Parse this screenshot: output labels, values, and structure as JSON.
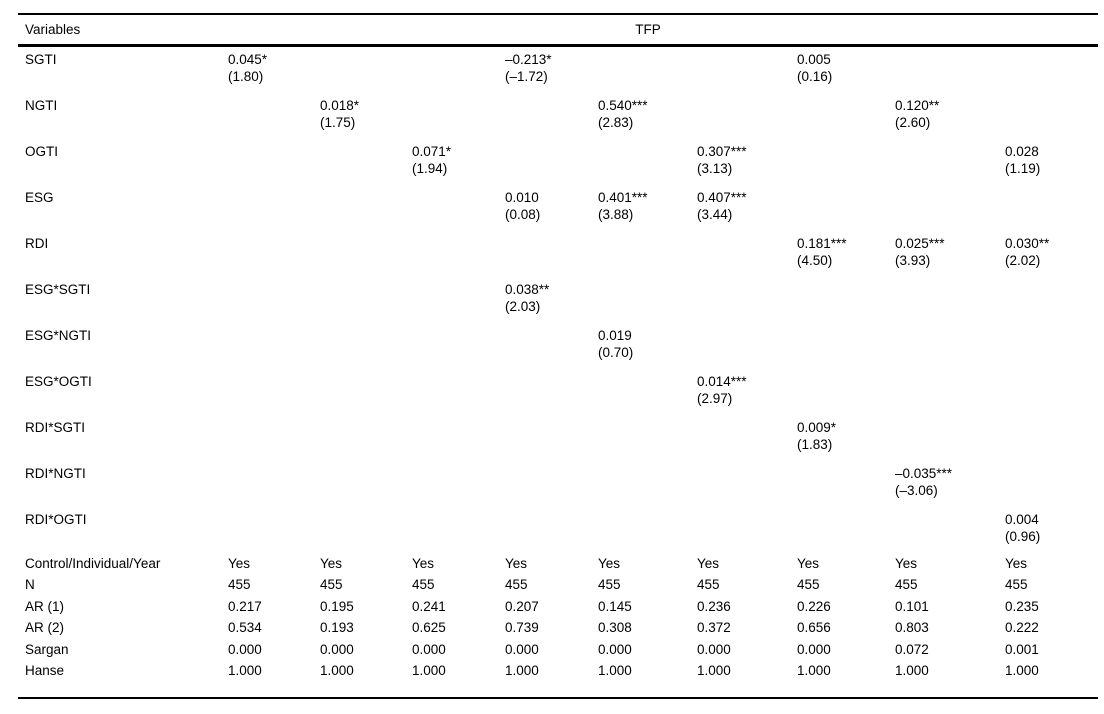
{
  "table": {
    "header": {
      "variables_label": "Variables",
      "dependent_variable_label": "TFP"
    },
    "variable_rows": [
      {
        "label": "SGTI",
        "coefs": [
          "0.045*",
          "",
          "",
          "–0.213*",
          "",
          "",
          "0.005",
          "",
          ""
        ],
        "tstats": [
          "(1.80)",
          "",
          "",
          "(–1.72)",
          "",
          "",
          "(0.16)",
          "",
          ""
        ]
      },
      {
        "label": "NGTI",
        "coefs": [
          "",
          "0.018*",
          "",
          "",
          "0.540***",
          "",
          "",
          "0.120**",
          ""
        ],
        "tstats": [
          "",
          "(1.75)",
          "",
          "",
          "(2.83)",
          "",
          "",
          "(2.60)",
          ""
        ]
      },
      {
        "label": "OGTI",
        "coefs": [
          "",
          "",
          "0.071*",
          "",
          "",
          "0.307***",
          "",
          "",
          "0.028"
        ],
        "tstats": [
          "",
          "",
          "(1.94)",
          "",
          "",
          "(3.13)",
          "",
          "",
          "(1.19)"
        ]
      },
      {
        "label": "ESG",
        "coefs": [
          "",
          "",
          "",
          "0.010",
          "0.401***",
          "0.407***",
          "",
          "",
          ""
        ],
        "tstats": [
          "",
          "",
          "",
          "(0.08)",
          "(3.88)",
          "(3.44)",
          "",
          "",
          ""
        ]
      },
      {
        "label": "RDI",
        "coefs": [
          "",
          "",
          "",
          "",
          "",
          "",
          "0.181***",
          "0.025***",
          "0.030**"
        ],
        "tstats": [
          "",
          "",
          "",
          "",
          "",
          "",
          "(4.50)",
          "(3.93)",
          "(2.02)"
        ]
      },
      {
        "label": "ESG*SGTI",
        "coefs": [
          "",
          "",
          "",
          "0.038**",
          "",
          "",
          "",
          "",
          ""
        ],
        "tstats": [
          "",
          "",
          "",
          "(2.03)",
          "",
          "",
          "",
          "",
          ""
        ]
      },
      {
        "label": "ESG*NGTI",
        "coefs": [
          "",
          "",
          "",
          "",
          "0.019",
          "",
          "",
          "",
          ""
        ],
        "tstats": [
          "",
          "",
          "",
          "",
          "(0.70)",
          "",
          "",
          "",
          ""
        ]
      },
      {
        "label": "ESG*OGTI",
        "coefs": [
          "",
          "",
          "",
          "",
          "",
          "0.014***",
          "",
          "",
          ""
        ],
        "tstats": [
          "",
          "",
          "",
          "",
          "",
          "(2.97)",
          "",
          "",
          ""
        ]
      },
      {
        "label": "RDI*SGTI",
        "coefs": [
          "",
          "",
          "",
          "",
          "",
          "",
          "0.009*",
          "",
          ""
        ],
        "tstats": [
          "",
          "",
          "",
          "",
          "",
          "",
          "(1.83)",
          "",
          ""
        ]
      },
      {
        "label": "RDI*NGTI",
        "coefs": [
          "",
          "",
          "",
          "",
          "",
          "",
          "",
          "–0.035***",
          ""
        ],
        "tstats": [
          "",
          "",
          "",
          "",
          "",
          "",
          "",
          "(–3.06)",
          ""
        ]
      },
      {
        "label": "RDI*OGTI",
        "coefs": [
          "",
          "",
          "",
          "",
          "",
          "",
          "",
          "",
          "0.004"
        ],
        "tstats": [
          "",
          "",
          "",
          "",
          "",
          "",
          "",
          "",
          "(0.96)"
        ]
      }
    ],
    "summary_rows": [
      {
        "label": "Control/Individual/Year",
        "values": [
          "Yes",
          "Yes",
          "Yes",
          "Yes",
          "Yes",
          "Yes",
          "Yes",
          "Yes",
          "Yes"
        ]
      },
      {
        "label": "N",
        "values": [
          "455",
          "455",
          "455",
          "455",
          "455",
          "455",
          "455",
          "455",
          "455"
        ]
      },
      {
        "label": "AR (1)",
        "values": [
          "0.217",
          "0.195",
          "0.241",
          "0.207",
          "0.145",
          "0.236",
          "0.226",
          "0.101",
          "0.235"
        ]
      },
      {
        "label": "AR (2)",
        "values": [
          "0.534",
          "0.193",
          "0.625",
          "0.739",
          "0.308",
          "0.372",
          "0.656",
          "0.803",
          "0.222"
        ]
      },
      {
        "label": "Sargan",
        "values": [
          "0.000",
          "0.000",
          "0.000",
          "0.000",
          "0.000",
          "0.000",
          "0.000",
          "0.072",
          "0.001"
        ]
      },
      {
        "label": "Hanse",
        "values": [
          "1.000",
          "1.000",
          "1.000",
          "1.000",
          "1.000",
          "1.000",
          "1.000",
          "1.000",
          "1.000"
        ]
      }
    ]
  }
}
